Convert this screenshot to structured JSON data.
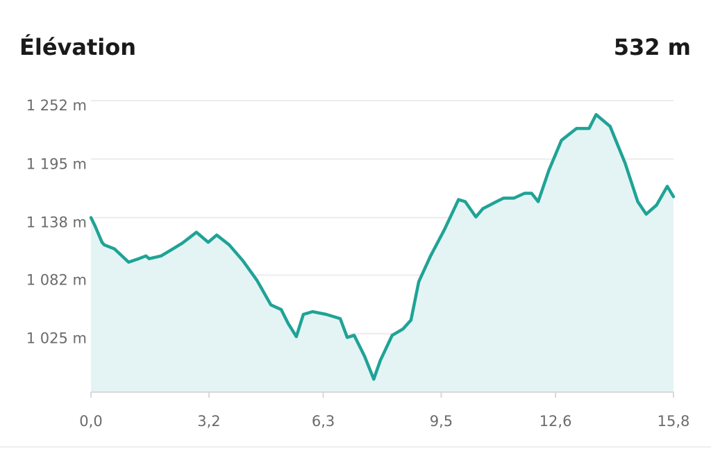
{
  "chart_data": {
    "type": "line",
    "title": "Élévation",
    "summary": "532 m",
    "x": [
      0,
      0.11,
      0.3,
      0.36,
      0.64,
      1.02,
      1.3,
      1.49,
      1.58,
      1.9,
      2.09,
      2.47,
      2.86,
      3.18,
      3.41,
      3.75,
      4.12,
      4.5,
      4.88,
      5.16,
      5.35,
      5.57,
      5.76,
      6.01,
      6.38,
      6.76,
      6.95,
      7.14,
      7.42,
      7.67,
      7.85,
      8.17,
      8.46,
      8.68,
      8.89,
      9.21,
      9.59,
      9.97,
      10.15,
      10.44,
      10.63,
      11.0,
      11.19,
      11.47,
      11.76,
      11.95,
      12.13,
      12.42,
      12.76,
      13.17,
      13.51,
      13.7,
      14.08,
      14.49,
      14.83,
      15.06,
      15.34,
      15.63,
      15.8
    ],
    "values": [
      1138,
      1130,
      1114,
      1111.5,
      1107.5,
      1094.6,
      1098,
      1100.7,
      1098,
      1100.7,
      1104.7,
      1113,
      1123.7,
      1114,
      1121,
      1111.5,
      1096,
      1077,
      1053,
      1048.4,
      1034.8,
      1022,
      1043.7,
      1046.4,
      1043.7,
      1039.6,
      1021.3,
      1023.3,
      1003,
      980.6,
      998.9,
      1023.3,
      1029.4,
      1038.2,
      1075.6,
      1100.7,
      1126.5,
      1155.6,
      1153.6,
      1138.7,
      1146.8,
      1153.6,
      1157,
      1157,
      1161.7,
      1161.7,
      1153.6,
      1184.1,
      1213.3,
      1224.9,
      1224.9,
      1238.4,
      1226.9,
      1190.9,
      1153.6,
      1141.4,
      1150.2,
      1168.5,
      1158.4
    ],
    "color": "#1fa396",
    "fill_color": "#e4f4f4",
    "xlim": [
      0,
      15.8
    ],
    "xticks": [
      {
        "value": 0,
        "label": "0,0"
      },
      {
        "value": 3.2,
        "label": "3,2"
      },
      {
        "value": 6.3,
        "label": "6,3"
      },
      {
        "value": 9.5,
        "label": "9,5"
      },
      {
        "value": 12.6,
        "label": "12,6"
      },
      {
        "value": 15.8,
        "label": "15,8"
      }
    ],
    "ylim": [
      968,
      1252
    ],
    "yticks": [
      {
        "value": 1025,
        "label": "1 025 m"
      },
      {
        "value": 1082,
        "label": "1 082 m"
      },
      {
        "value": 1138,
        "label": "1 138 m"
      },
      {
        "value": 1195,
        "label": "1 195 m"
      },
      {
        "value": 1252,
        "label": "1 252 m"
      }
    ],
    "grid": true
  }
}
